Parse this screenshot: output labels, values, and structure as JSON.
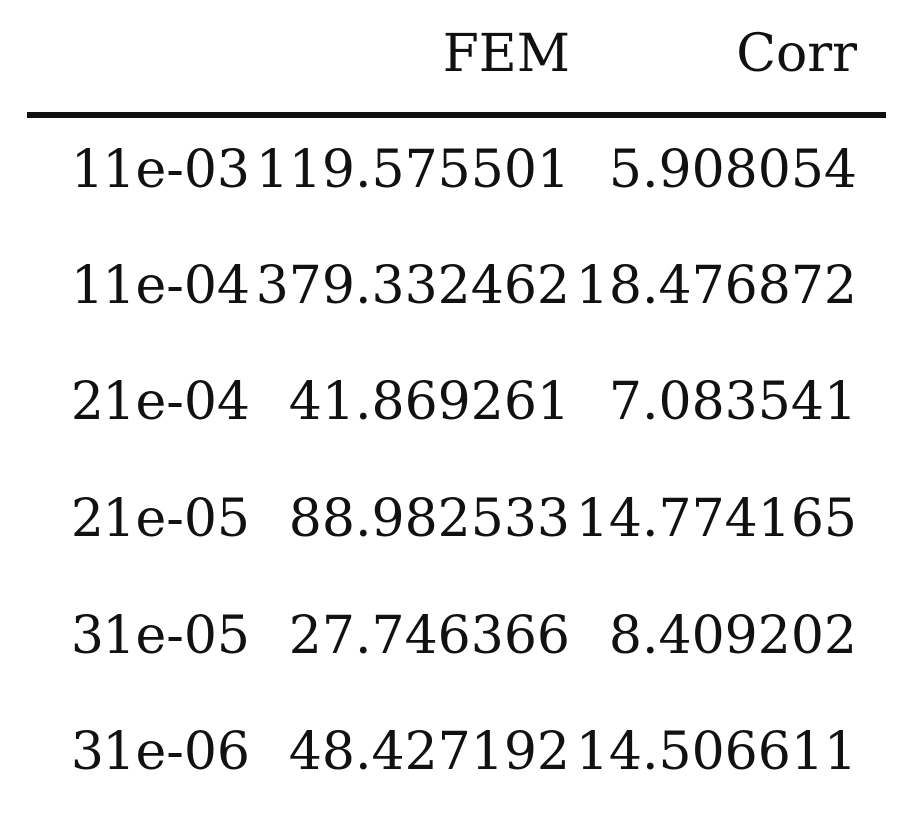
{
  "table": {
    "columns": [
      "",
      "",
      "FEM",
      "Corr"
    ],
    "rows": [
      [
        "1",
        "1e-03",
        "119.575501",
        "5.908054"
      ],
      [
        "1",
        "1e-04",
        "379.332462",
        "18.476872"
      ],
      [
        "2",
        "1e-04",
        "41.869261",
        "7.083541"
      ],
      [
        "2",
        "1e-05",
        "88.982533",
        "14.774165"
      ],
      [
        "3",
        "1e-05",
        "27.746366",
        "8.409202"
      ],
      [
        "3",
        "1e-06",
        "48.427192",
        "14.506611"
      ]
    ]
  }
}
